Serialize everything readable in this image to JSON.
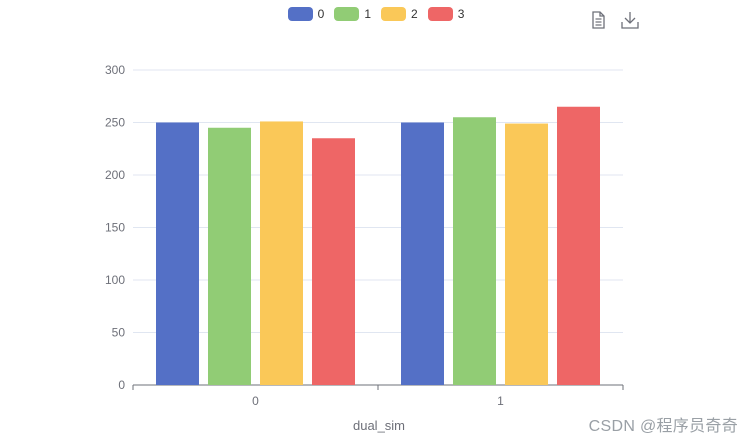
{
  "chart_data": {
    "type": "bar",
    "categories": [
      "0",
      "1"
    ],
    "xlabel": "dual_sim",
    "ylabel": "",
    "ylim": [
      0,
      300
    ],
    "yticks": [
      0,
      50,
      100,
      150,
      200,
      250,
      300
    ],
    "grid": true,
    "legend_position": "top-center",
    "series": [
      {
        "name": "0",
        "color": "#5470c6",
        "values": [
          250,
          250
        ]
      },
      {
        "name": "1",
        "color": "#91cc75",
        "values": [
          245,
          255
        ]
      },
      {
        "name": "2",
        "color": "#fac858",
        "values": [
          251,
          249
        ]
      },
      {
        "name": "3",
        "color": "#ee6666",
        "values": [
          235,
          265
        ]
      }
    ]
  },
  "toolbox": {
    "icons": [
      "data-view-icon",
      "download-icon"
    ]
  },
  "watermark": "CSDN @程序员奇奇"
}
